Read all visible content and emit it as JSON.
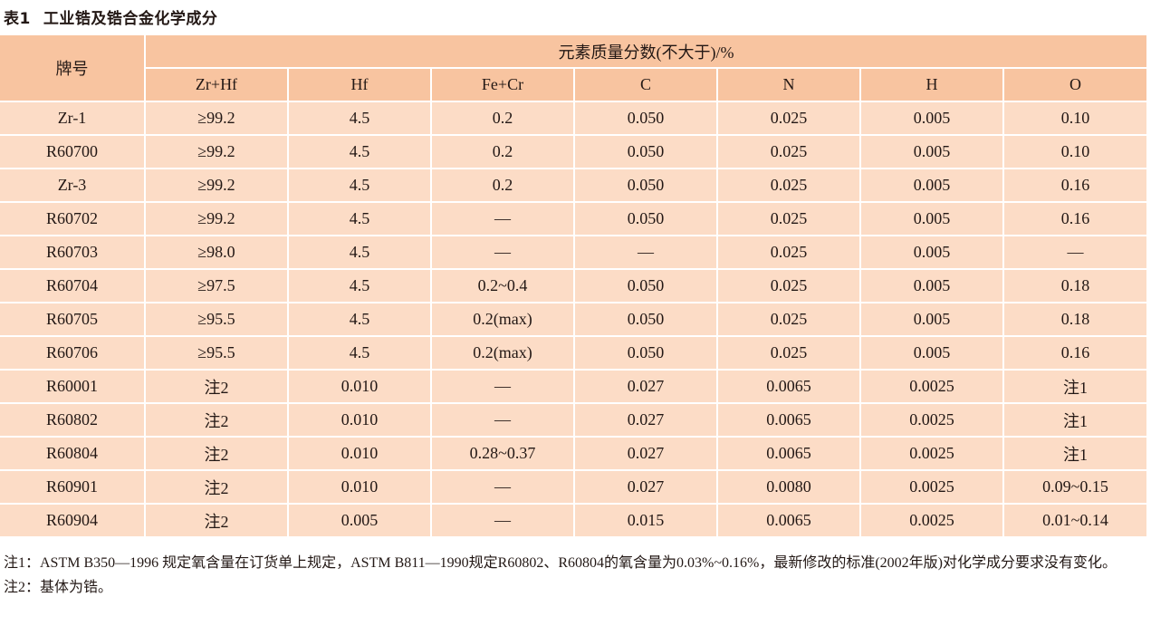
{
  "title": {
    "label": "表1",
    "text": "工业锆及锆合金化学成分"
  },
  "table": {
    "grade_header": "牌号",
    "group_header": "元素质量分数(不大于)/%",
    "columns": [
      "Zr+Hf",
      "Hf",
      "Fe+Cr",
      "C",
      "N",
      "H",
      "O"
    ],
    "rows": [
      [
        "Zr-1",
        "≥99.2",
        "4.5",
        "0.2",
        "0.050",
        "0.025",
        "0.005",
        "0.10"
      ],
      [
        "R60700",
        "≥99.2",
        "4.5",
        "0.2",
        "0.050",
        "0.025",
        "0.005",
        "0.10"
      ],
      [
        "Zr-3",
        "≥99.2",
        "4.5",
        "0.2",
        "0.050",
        "0.025",
        "0.005",
        "0.16"
      ],
      [
        "R60702",
        "≥99.2",
        "4.5",
        "—",
        "0.050",
        "0.025",
        "0.005",
        "0.16"
      ],
      [
        "R60703",
        "≥98.0",
        "4.5",
        "—",
        "—",
        "0.025",
        "0.005",
        "—"
      ],
      [
        "R60704",
        "≥97.5",
        "4.5",
        "0.2~0.4",
        "0.050",
        "0.025",
        "0.005",
        "0.18"
      ],
      [
        "R60705",
        "≥95.5",
        "4.5",
        "0.2(max)",
        "0.050",
        "0.025",
        "0.005",
        "0.18"
      ],
      [
        "R60706",
        "≥95.5",
        "4.5",
        "0.2(max)",
        "0.050",
        "0.025",
        "0.005",
        "0.16"
      ],
      [
        "R60001",
        "注2",
        "0.010",
        "—",
        "0.027",
        "0.0065",
        "0.0025",
        "注1"
      ],
      [
        "R60802",
        "注2",
        "0.010",
        "—",
        "0.027",
        "0.0065",
        "0.0025",
        "注1"
      ],
      [
        "R60804",
        "注2",
        "0.010",
        "0.28~0.37",
        "0.027",
        "0.0065",
        "0.0025",
        "注1"
      ],
      [
        "R60901",
        "注2",
        "0.010",
        "—",
        "0.027",
        "0.0080",
        "0.0025",
        "0.09~0.15"
      ],
      [
        "R60904",
        "注2",
        "0.005",
        "—",
        "0.015",
        "0.0065",
        "0.0025",
        "0.01~0.14"
      ]
    ]
  },
  "notes": [
    "注1：ASTM B350—1996 规定氧含量在订货单上规定，ASTM B811—1990规定R60802、R60804的氧含量为0.03%~0.16%，最新修改的标准(2002年版)对化学成分要求没有变化。",
    "注2：基体为锆。"
  ]
}
